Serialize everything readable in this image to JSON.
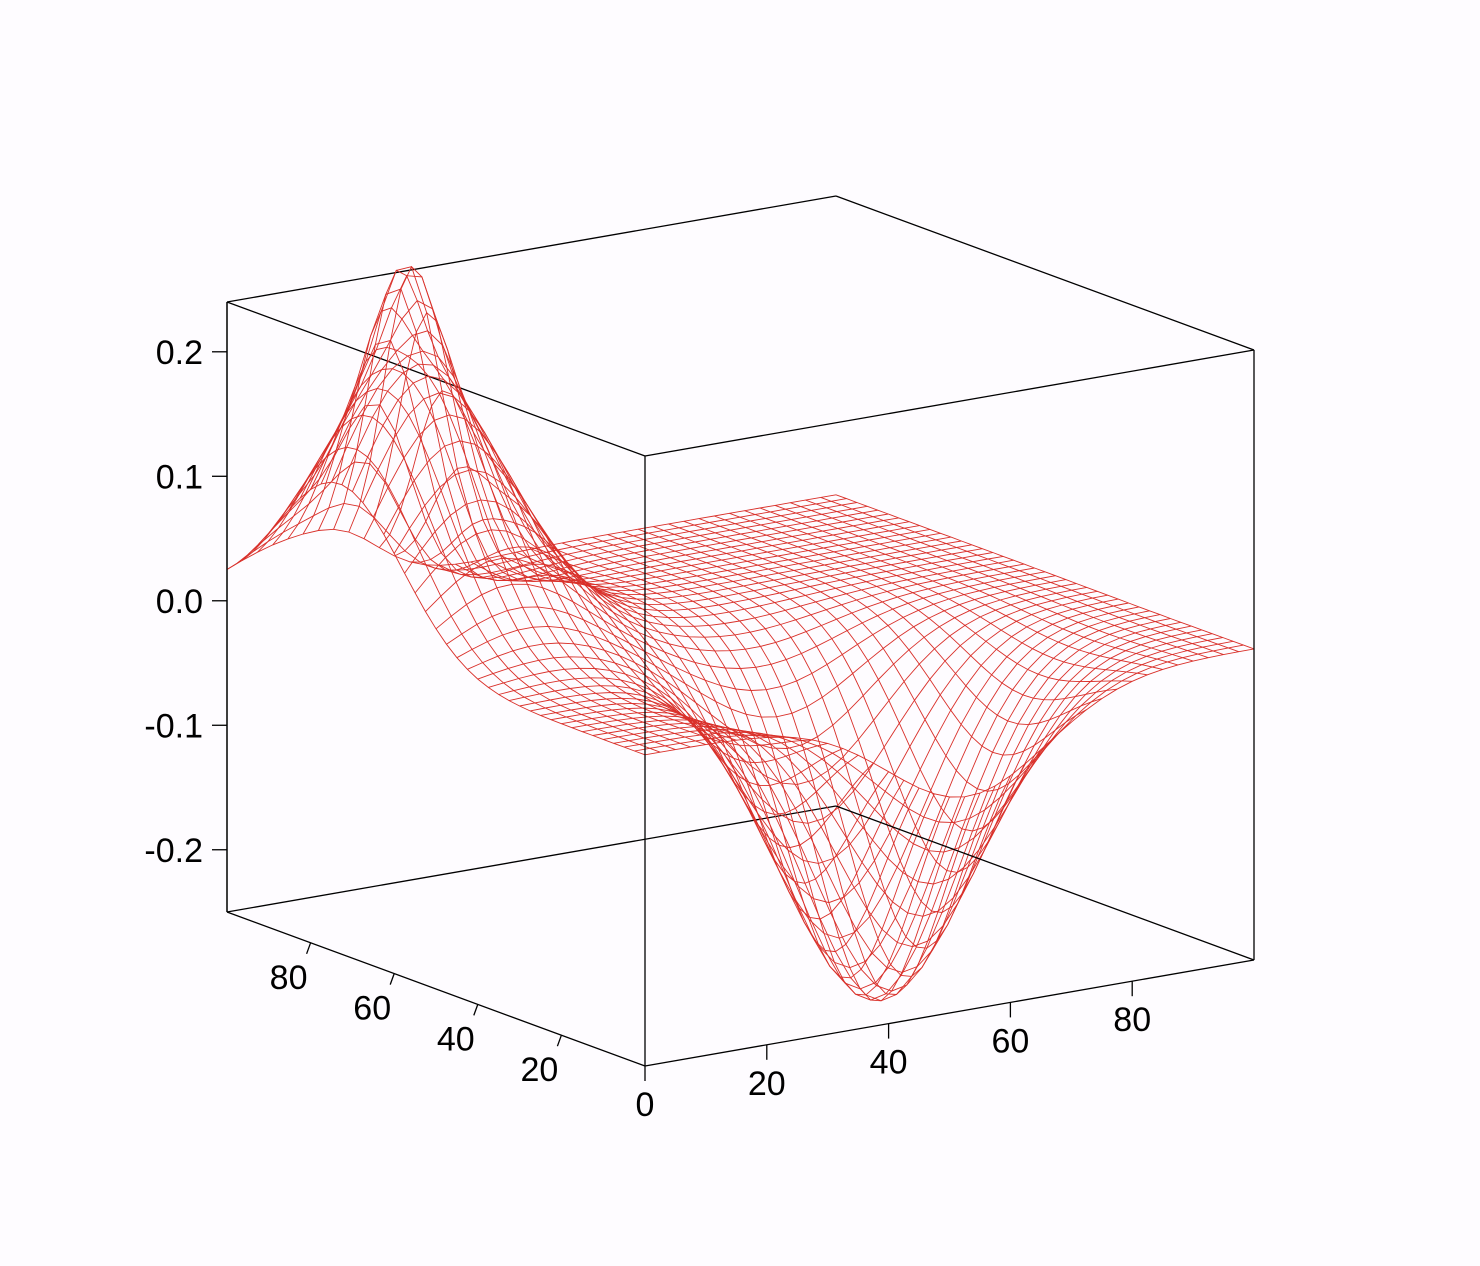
{
  "chart_data": {
    "type": "surface",
    "x_range": [
      0,
      100
    ],
    "y_range": [
      0,
      100
    ],
    "z_range": [
      -0.25,
      0.24
    ],
    "grid_resolution": 40,
    "x_ticks": [
      "0",
      "20",
      "40",
      "60",
      "80"
    ],
    "x_tick_values": [
      0,
      20,
      40,
      60,
      80
    ],
    "y_ticks": [
      "20",
      "40",
      "60",
      "80"
    ],
    "y_tick_values": [
      20,
      40,
      60,
      80
    ],
    "z_ticks": [
      "0.2",
      "0.1",
      "0.0",
      "-0.1",
      "-0.2"
    ],
    "z_tick_values": [
      0.2,
      0.1,
      0.0,
      -0.1,
      -0.2
    ],
    "features": [
      {
        "kind": "peak",
        "x": 12,
        "y": 73,
        "z": 0.2
      },
      {
        "kind": "peak",
        "x": 20,
        "y": 85,
        "z": 0.1
      },
      {
        "kind": "trough",
        "x": 53,
        "y": 22,
        "z": -0.26
      }
    ],
    "colors": {
      "mesh": "#d9302a",
      "box": "#000000",
      "background": "#fefcff"
    }
  }
}
